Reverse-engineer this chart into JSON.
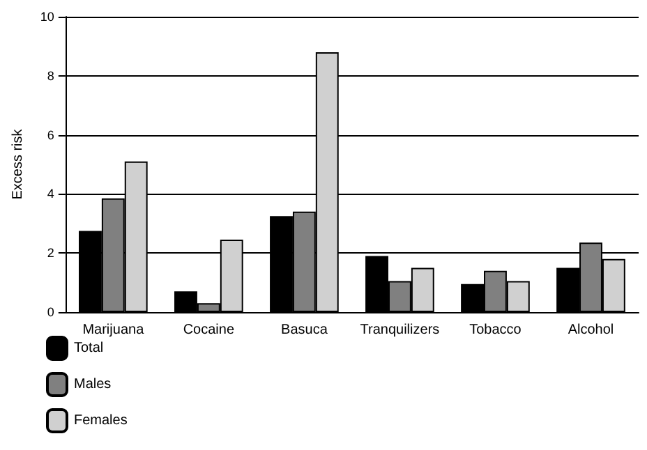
{
  "chart_data": {
    "type": "bar",
    "ylabel": "Excess risk",
    "categories": [
      "Marijuana",
      "Cocaine",
      "Basuca",
      "Tranquilizers",
      "Tobacco",
      "Alcohol"
    ],
    "series": [
      {
        "name": "Total",
        "color": "#000000",
        "values": [
          2.75,
          0.7,
          3.25,
          1.9,
          0.95,
          1.5
        ]
      },
      {
        "name": "Males",
        "color": "#808080",
        "values": [
          3.85,
          0.3,
          3.4,
          1.05,
          1.4,
          2.35
        ]
      },
      {
        "name": "Females",
        "color": "#d0d0d0",
        "values": [
          5.1,
          2.45,
          8.8,
          1.5,
          1.05,
          1.8
        ]
      }
    ],
    "ylim": [
      0,
      10
    ],
    "yticks": [
      0,
      2,
      4,
      6,
      8,
      10
    ],
    "grid": "y",
    "legend": "bottom left"
  }
}
